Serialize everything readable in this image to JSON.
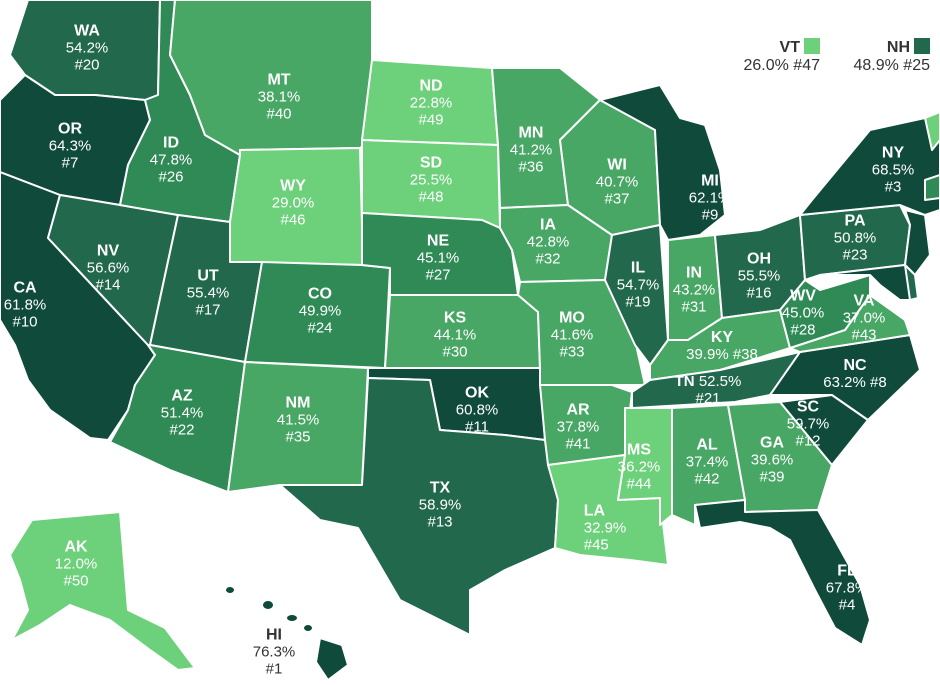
{
  "colors": {
    "q1": "#0f4a3a",
    "q2": "#22684c",
    "q3": "#2f8a56",
    "q4": "#48a765",
    "q5": "#6dd07a"
  },
  "states": [
    {
      "code": "WA",
      "value": "54.2%",
      "rank": "#20",
      "color": "q2"
    },
    {
      "code": "OR",
      "value": "64.3%",
      "rank": "#7",
      "color": "q1"
    },
    {
      "code": "CA",
      "value": "61.8%",
      "rank": "#10",
      "color": "q1"
    },
    {
      "code": "NV",
      "value": "56.6%",
      "rank": "#14",
      "color": "q2"
    },
    {
      "code": "ID",
      "value": "47.8%",
      "rank": "#26",
      "color": "q3"
    },
    {
      "code": "MT",
      "value": "38.1%",
      "rank": "#40",
      "color": "q4"
    },
    {
      "code": "WY",
      "value": "29.0%",
      "rank": "#46",
      "color": "q5"
    },
    {
      "code": "UT",
      "value": "55.4%",
      "rank": "#17",
      "color": "q2"
    },
    {
      "code": "AZ",
      "value": "51.4%",
      "rank": "#22",
      "color": "q3"
    },
    {
      "code": "CO",
      "value": "49.9%",
      "rank": "#24",
      "color": "q3"
    },
    {
      "code": "NM",
      "value": "41.5%",
      "rank": "#35",
      "color": "q4"
    },
    {
      "code": "ND",
      "value": "22.8%",
      "rank": "#49",
      "color": "q5"
    },
    {
      "code": "SD",
      "value": "25.5%",
      "rank": "#48",
      "color": "q5"
    },
    {
      "code": "NE",
      "value": "45.1%",
      "rank": "#27",
      "color": "q3"
    },
    {
      "code": "KS",
      "value": "44.1%",
      "rank": "#30",
      "color": "q4"
    },
    {
      "code": "OK",
      "value": "60.8%",
      "rank": "#11",
      "color": "q1"
    },
    {
      "code": "TX",
      "value": "58.9%",
      "rank": "#13",
      "color": "q2"
    },
    {
      "code": "MN",
      "value": "41.2%",
      "rank": "#36",
      "color": "q4"
    },
    {
      "code": "IA",
      "value": "42.8%",
      "rank": "#32",
      "color": "q4"
    },
    {
      "code": "MO",
      "value": "41.6%",
      "rank": "#33",
      "color": "q4"
    },
    {
      "code": "AR",
      "value": "37.8%",
      "rank": "#41",
      "color": "q4"
    },
    {
      "code": "LA",
      "value": "32.9%",
      "rank": "#45",
      "color": "q5"
    },
    {
      "code": "WI",
      "value": "40.7%",
      "rank": "#37",
      "color": "q4"
    },
    {
      "code": "IL",
      "value": "54.7%",
      "rank": "#19",
      "color": "q2"
    },
    {
      "code": "MI",
      "value": "62.1%",
      "rank": "#9",
      "color": "q1"
    },
    {
      "code": "IN",
      "value": "43.2%",
      "rank": "#31",
      "color": "q4"
    },
    {
      "code": "OH",
      "value": "55.5%",
      "rank": "#16",
      "color": "q2"
    },
    {
      "code": "KY",
      "value": "39.9%",
      "rank": "#38",
      "color": "q4"
    },
    {
      "code": "TN",
      "value": "52.5%",
      "rank": "#21",
      "color": "q2"
    },
    {
      "code": "MS",
      "value": "36.2%",
      "rank": "#44",
      "color": "q5"
    },
    {
      "code": "AL",
      "value": "37.4%",
      "rank": "#42",
      "color": "q4"
    },
    {
      "code": "GA",
      "value": "39.6%",
      "rank": "#39",
      "color": "q4"
    },
    {
      "code": "FL",
      "value": "67.8%",
      "rank": "#4",
      "color": "q1"
    },
    {
      "code": "SC",
      "value": "59.7%",
      "rank": "#12",
      "color": "q1"
    },
    {
      "code": "NC",
      "value": "63.2%",
      "rank": "#8",
      "color": "q1"
    },
    {
      "code": "VA",
      "value": "37.0%",
      "rank": "#43",
      "color": "q4"
    },
    {
      "code": "WV",
      "value": "45.0%",
      "rank": "#28",
      "color": "q3"
    },
    {
      "code": "PA",
      "value": "50.8%",
      "rank": "#23",
      "color": "q2"
    },
    {
      "code": "NY",
      "value": "68.5%",
      "rank": "#3",
      "color": "q1"
    },
    {
      "code": "AK",
      "value": "12.0%",
      "rank": "#50",
      "color": "q5"
    },
    {
      "code": "HI",
      "value": "76.3%",
      "rank": "#1",
      "color": "q1"
    }
  ],
  "legend": [
    {
      "code": "VT",
      "value": "26.0%",
      "rank": "#47",
      "color": "q5"
    },
    {
      "code": "NH",
      "value": "48.9%",
      "rank": "#25",
      "color": "q2"
    }
  ]
}
